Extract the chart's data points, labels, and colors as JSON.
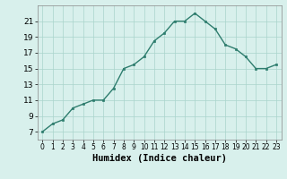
{
  "xlabel": "Humidex (Indice chaleur)",
  "x": [
    0,
    1,
    2,
    3,
    4,
    5,
    6,
    7,
    8,
    9,
    10,
    11,
    12,
    13,
    14,
    15,
    16,
    17,
    18,
    19,
    20,
    21,
    22,
    23
  ],
  "y": [
    7,
    8,
    8.5,
    10,
    10.5,
    11,
    11,
    12.5,
    15,
    15.5,
    16.5,
    18.5,
    19.5,
    21,
    21,
    22,
    21,
    20,
    18,
    17.5,
    16.5,
    15,
    15,
    15.5
  ],
  "line_color": "#2e7d6e",
  "marker": "s",
  "marker_size": 2.0,
  "bg_color": "#d8f0ec",
  "grid_color": "#aad4cc",
  "ylim": [
    6,
    23
  ],
  "xlim": [
    -0.5,
    23.5
  ],
  "yticks": [
    7,
    9,
    11,
    13,
    15,
    17,
    19,
    21
  ],
  "xtick_labels": [
    "0",
    "1",
    "2",
    "3",
    "4",
    "5",
    "6",
    "7",
    "8",
    "9",
    "10",
    "11",
    "12",
    "13",
    "14",
    "15",
    "16",
    "17",
    "18",
    "19",
    "20",
    "21",
    "22",
    "23"
  ],
  "xlabel_fontsize": 7.5,
  "ytick_fontsize": 6.5,
  "xtick_fontsize": 5.5,
  "linewidth": 1.0
}
